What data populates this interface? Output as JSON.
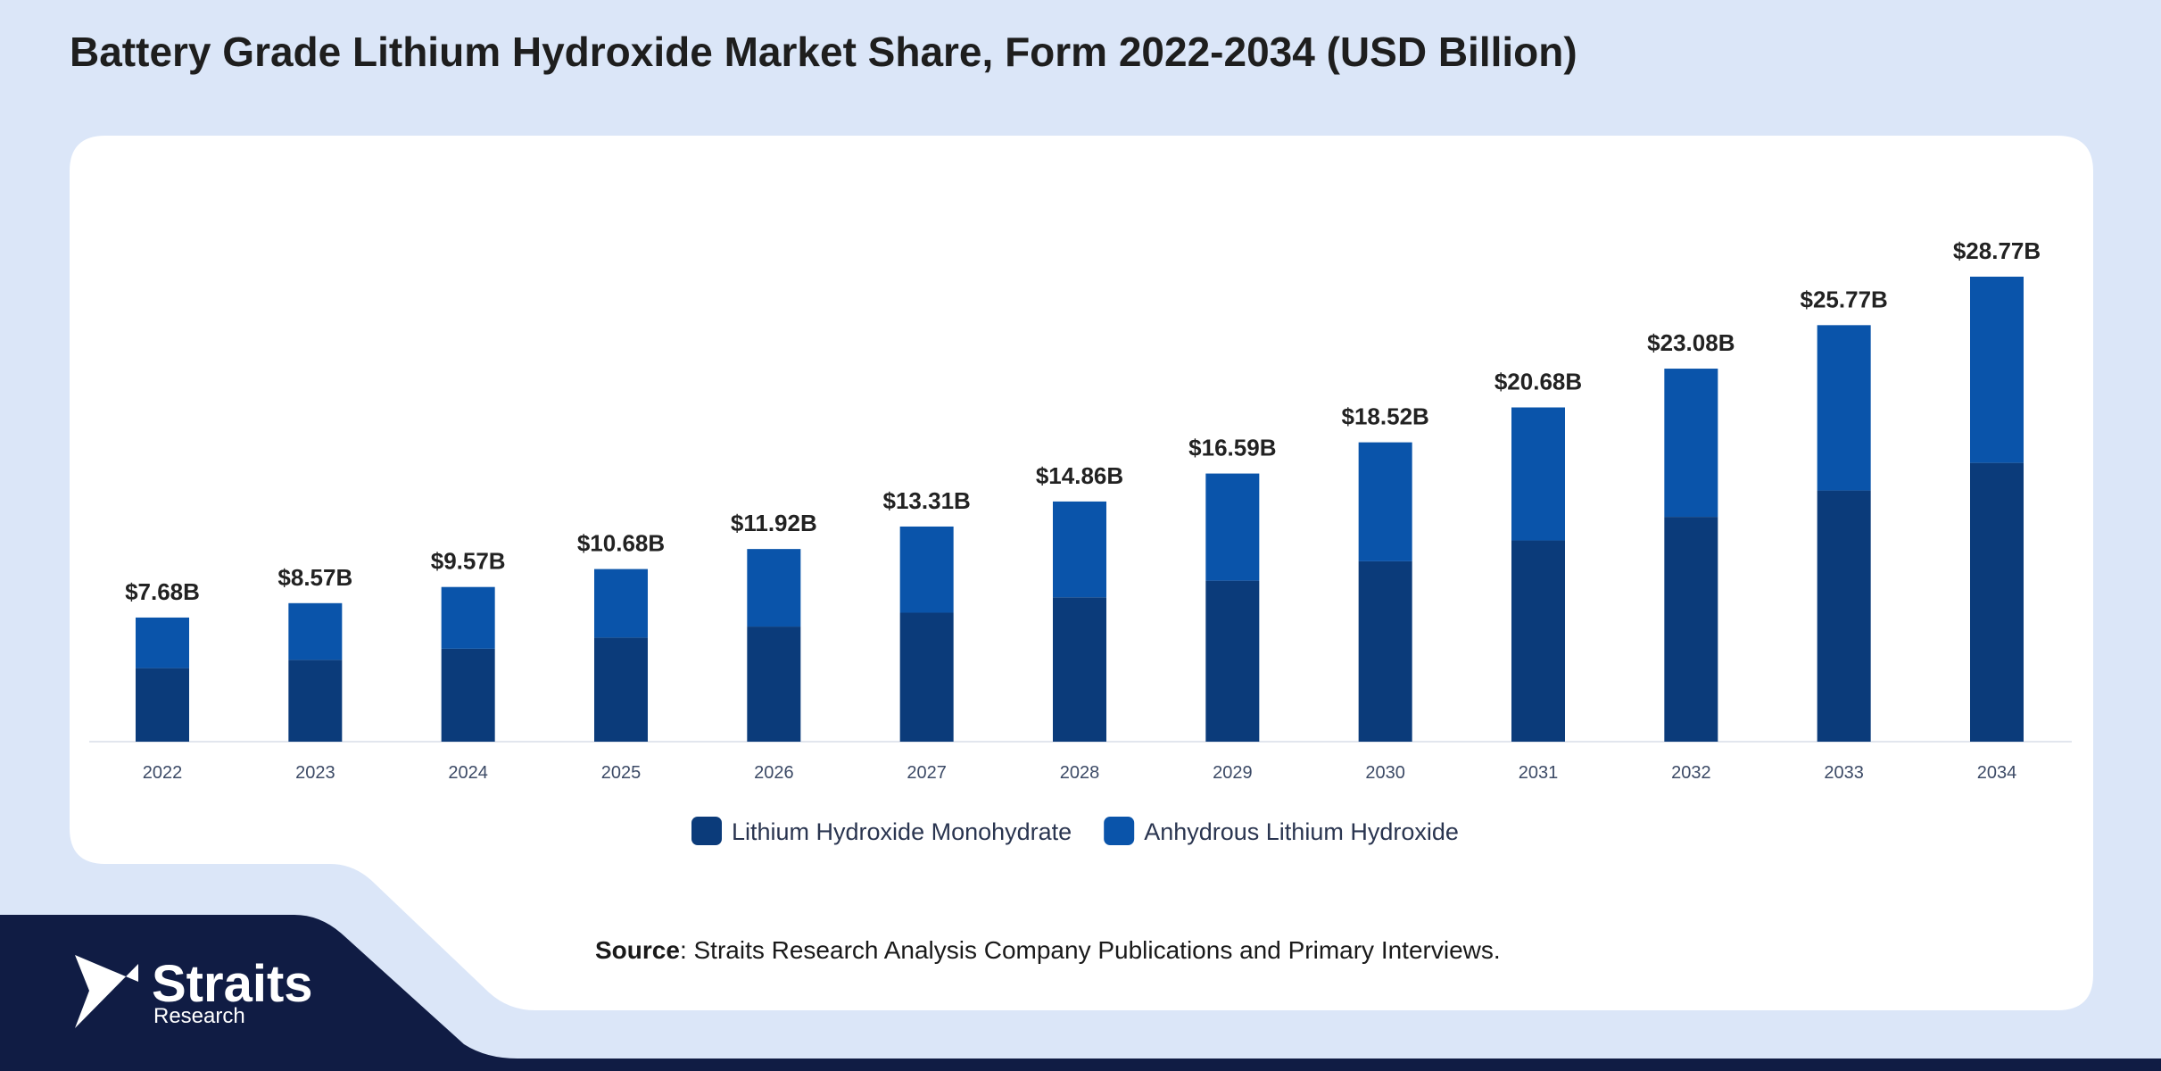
{
  "chart_data": {
    "type": "stacked-bar",
    "title": "Battery Grade Lithium Hydroxide Market Share, Form 2022-2034 (USD Billion)",
    "categories": [
      "2022",
      "2023",
      "2024",
      "2025",
      "2026",
      "2027",
      "2028",
      "2029",
      "2030",
      "2031",
      "2032",
      "2033",
      "2034"
    ],
    "series": [
      {
        "name": "Lithium Hydroxide Monohydrate",
        "color": "#0b3b7a",
        "values": [
          4.55,
          5.06,
          5.75,
          6.44,
          7.12,
          7.98,
          8.93,
          9.96,
          11.16,
          12.45,
          13.91,
          15.54,
          17.25
        ]
      },
      {
        "name": "Anhydrous Lithium Hydroxide",
        "color": "#0a54aa",
        "values": [
          3.13,
          3.51,
          3.82,
          4.24,
          4.8,
          5.33,
          5.93,
          6.63,
          7.36,
          8.23,
          9.17,
          10.23,
          11.52
        ]
      }
    ],
    "totals": {
      "values": [
        7.68,
        8.57,
        9.57,
        10.68,
        11.92,
        13.31,
        14.86,
        16.59,
        18.52,
        20.68,
        23.08,
        25.77,
        28.77
      ],
      "value_labels": [
        "$7.68B",
        "$8.57B",
        "$9.57B",
        "$10.68B",
        "$11.92B",
        "$13.31B",
        "$14.86B",
        "$16.59B",
        "$18.52B",
        "$20.68B",
        "$23.08B",
        "$25.77B",
        "$28.77B"
      ]
    },
    "legend": "bottom"
  },
  "source": {
    "label": "Source",
    "text": ": Straits Research Analysis Company Publications and Primary Interviews."
  },
  "logo": {
    "name": "Straits",
    "sub": "Research"
  }
}
